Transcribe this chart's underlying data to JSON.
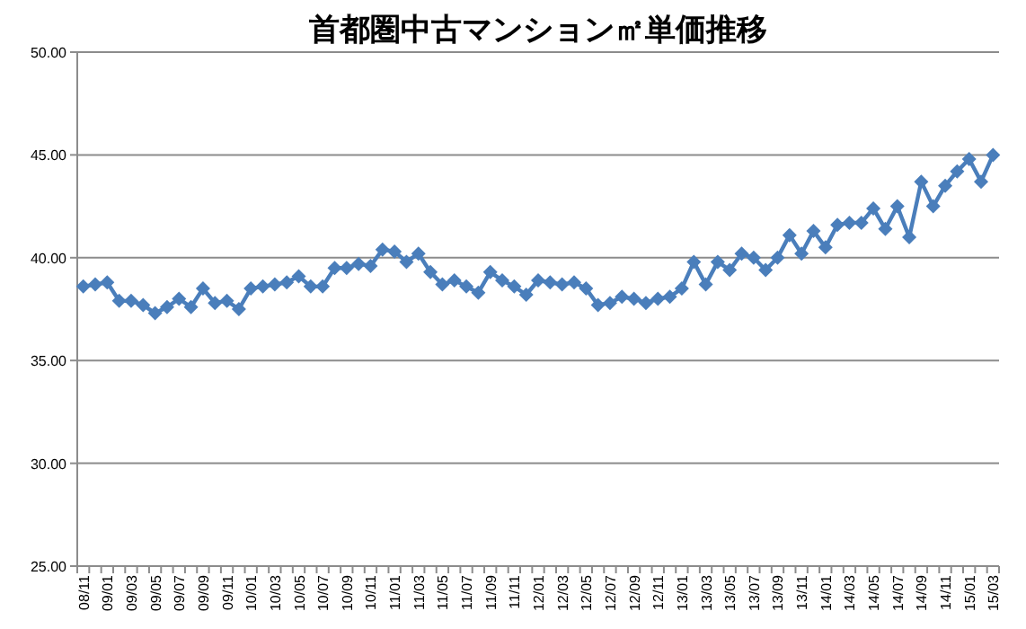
{
  "chart_data": {
    "type": "line",
    "title": "首都圏中古マンション㎡単価推移",
    "categories": [
      "08/11",
      null,
      "09/01",
      null,
      "09/03",
      null,
      "09/05",
      null,
      "09/07",
      null,
      "09/09",
      null,
      "09/11",
      null,
      "10/01",
      null,
      "10/03",
      null,
      "10/05",
      null,
      "10/07",
      null,
      "10/09",
      null,
      "10/11",
      null,
      "11/01",
      null,
      "11/03",
      null,
      "11/05",
      null,
      "11/07",
      null,
      "11/09",
      null,
      "11/11",
      null,
      "12/01",
      null,
      "12/03",
      null,
      "12/05",
      null,
      "12/07",
      null,
      "12/09",
      null,
      "12/11",
      null,
      "13/01",
      null,
      "13/03",
      null,
      "13/05",
      null,
      "13/07",
      null,
      "13/09",
      null,
      "13/11",
      null,
      "14/01",
      null,
      "14/03",
      null,
      "14/05",
      null,
      "14/07",
      null,
      "14/09",
      null,
      "14/11",
      null,
      "15/01",
      null,
      "15/03"
    ],
    "series": [
      {
        "color": "#4a7ebb",
        "values": [
          38.6,
          38.7,
          38.8,
          37.9,
          37.9,
          37.7,
          37.3,
          37.6,
          38.0,
          37.6,
          38.5,
          37.8,
          37.9,
          37.5,
          38.5,
          38.6,
          38.7,
          38.8,
          39.1,
          38.6,
          38.6,
          39.5,
          39.5,
          39.7,
          39.6,
          40.4,
          40.3,
          39.8,
          40.2,
          39.3,
          38.7,
          38.9,
          38.6,
          38.3,
          39.3,
          38.9,
          38.6,
          38.2,
          38.9,
          38.8,
          38.7,
          38.8,
          38.5,
          37.7,
          37.8,
          38.1,
          38.0,
          37.8,
          38.0,
          38.1,
          38.5,
          39.8,
          38.7,
          39.8,
          39.4,
          40.2,
          40.0,
          39.4,
          40.0,
          41.1,
          40.2,
          41.3,
          40.5,
          41.6,
          41.7,
          41.7,
          42.4,
          41.4,
          42.5,
          41.0,
          43.7,
          42.5,
          43.5,
          44.2,
          44.8,
          43.7,
          45.0
        ]
      }
    ],
    "ylim": [
      25,
      50
    ],
    "yticks": [
      {
        "value": 25,
        "label": "25.00"
      },
      {
        "value": 30,
        "label": "30.00"
      },
      {
        "value": 35,
        "label": "35.00"
      },
      {
        "value": 40,
        "label": "40.00"
      },
      {
        "value": 45,
        "label": "45.00"
      },
      {
        "value": 50,
        "label": "50.00"
      }
    ],
    "grid": "y",
    "marker": "diamond",
    "line_style": "solid"
  }
}
